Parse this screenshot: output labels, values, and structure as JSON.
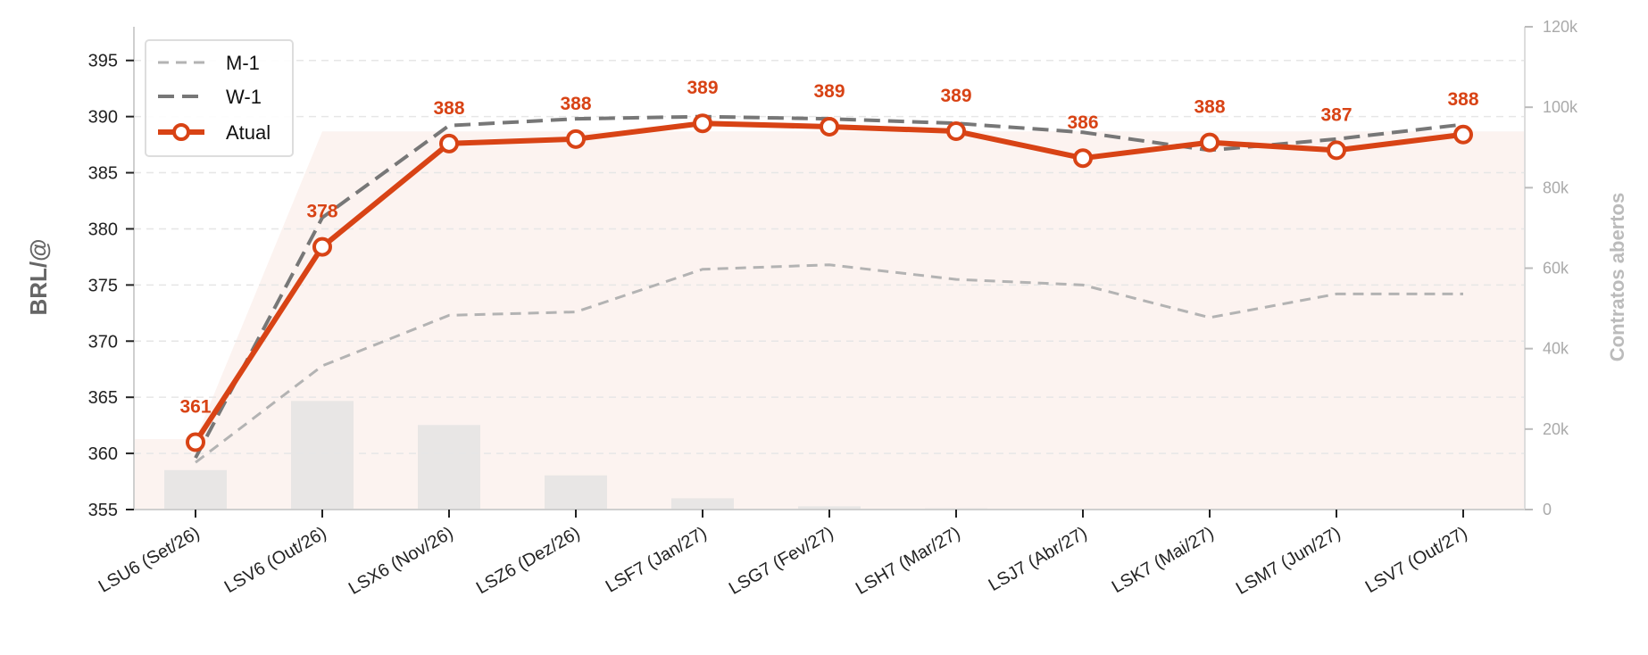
{
  "chart_data": {
    "type": "line",
    "categories": [
      "LSU6 (Set/26)",
      "LSV6 (Out/26)",
      "LSX6 (Nov/26)",
      "LSZ6 (Dez/26)",
      "LSF7 (Jan/27)",
      "LSG7 (Fev/27)",
      "LSH7 (Mar/27)",
      "LSJ7 (Abr/27)",
      "LSK7 (Mai/27)",
      "LSM7 (Jun/27)",
      "LSV7 (Out/27)"
    ],
    "series": [
      {
        "name": "M-1",
        "values": [
          359.2,
          367.8,
          372.3,
          372.6,
          376.4,
          376.8,
          375.5,
          375.0,
          372.1,
          374.2,
          374.2
        ],
        "color": "#b3b3b3",
        "style": "dashed"
      },
      {
        "name": "W-1",
        "values": [
          359.6,
          381.0,
          389.2,
          389.8,
          390.0,
          389.8,
          389.4,
          388.6,
          387.0,
          388.0,
          389.3
        ],
        "color": "#777777",
        "style": "dashed"
      },
      {
        "name": "Atual",
        "values": [
          361.0,
          378.4,
          387.6,
          388.0,
          389.4,
          389.1,
          388.7,
          386.3,
          387.7,
          387.0,
          388.4
        ],
        "color": "#d84315",
        "style": "solid-markers"
      }
    ],
    "data_labels": [
      "361",
      "378",
      "388",
      "388",
      "389",
      "389",
      "389",
      "386",
      "388",
      "387",
      "388"
    ],
    "open_interest": {
      "values": [
        9800,
        27000,
        21000,
        8500,
        2800,
        800,
        300,
        200,
        150,
        100,
        100
      ],
      "area_left_value": 17500,
      "area_right_value": 94000,
      "area_color": "#fcf3f0",
      "bar_color": "#e8e6e5"
    },
    "ylabel": "BRL/@",
    "ylabel_right": "Contratos abertos",
    "ylim": [
      355,
      398
    ],
    "yticks": [
      355,
      360,
      365,
      370,
      375,
      380,
      385,
      390,
      395
    ],
    "ylim_right": [
      0,
      120000
    ],
    "yticks_right": [
      "0",
      "20k",
      "40k",
      "60k",
      "80k",
      "100k",
      "120k"
    ],
    "grid": true,
    "legend_position": "top-left",
    "legend": [
      "M-1",
      "W-1",
      "Atual"
    ]
  }
}
